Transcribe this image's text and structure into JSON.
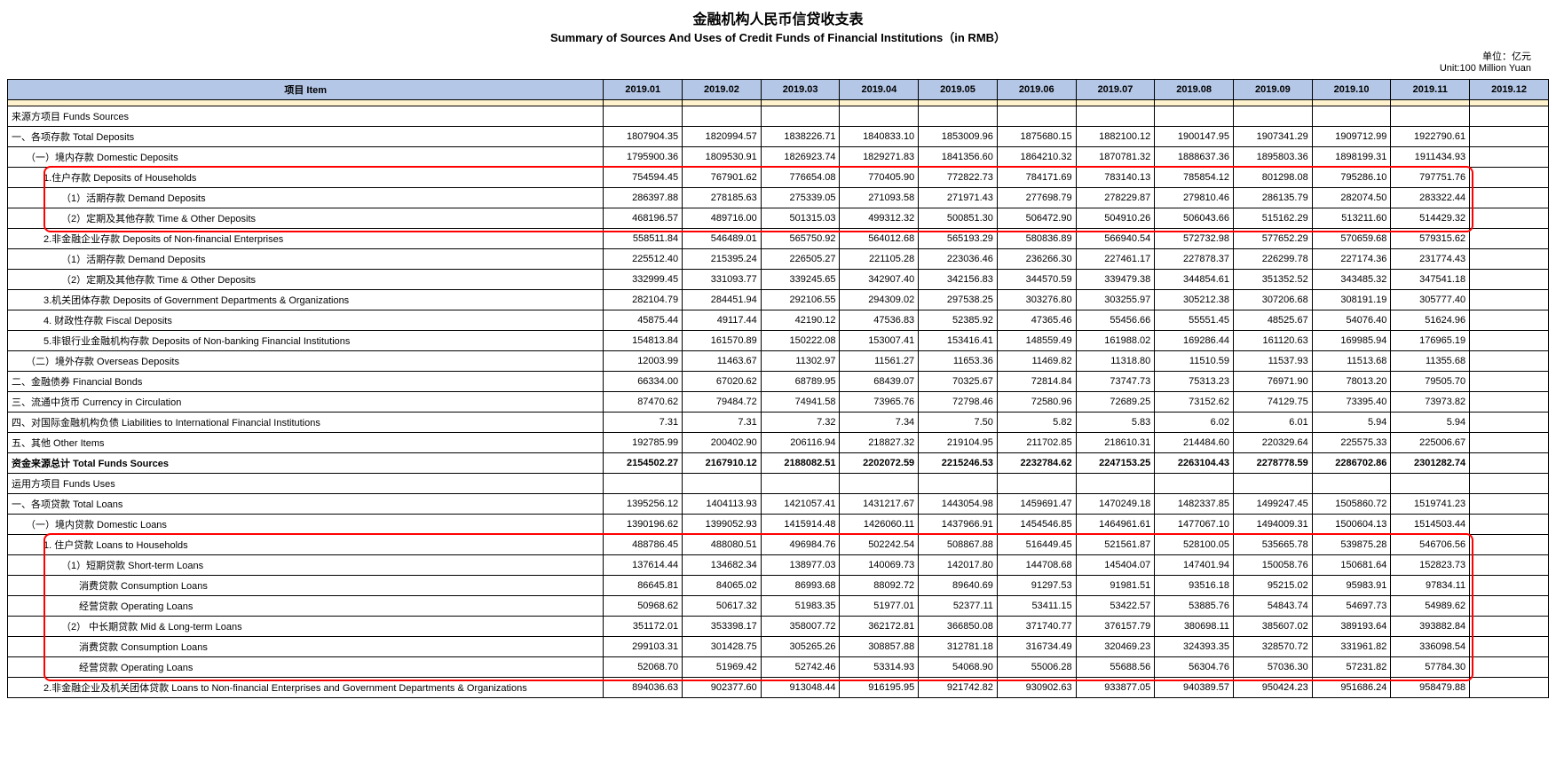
{
  "title_cn": "金融机构人民币信贷收支表",
  "title_en": "Summary of Sources And Uses of Credit Funds of Financial Institutions（in RMB）",
  "unit_cn": "单位：亿元",
  "unit_en": "Unit:100 Million Yuan",
  "header_item": "项目 Item",
  "periods": [
    "2019.01",
    "2019.02",
    "2019.03",
    "2019.04",
    "2019.05",
    "2019.06",
    "2019.07",
    "2019.08",
    "2019.09",
    "2019.10",
    "2019.11",
    "2019.12"
  ],
  "colors": {
    "header_bg": "#b4c7e7",
    "spacer_bg": "#fff2cc",
    "highlight_border": "#ff0000"
  },
  "rows": [
    {
      "label": "来源方项目 Funds Sources",
      "indent": 0,
      "bold": false,
      "values": [
        "",
        "",
        "",
        "",
        "",
        "",
        "",
        "",
        "",
        "",
        "",
        ""
      ]
    },
    {
      "label": "一、各项存款 Total Deposits",
      "indent": 0,
      "bold": false,
      "values": [
        "1807904.35",
        "1820994.57",
        "1838226.71",
        "1840833.10",
        "1853009.96",
        "1875680.15",
        "1882100.12",
        "1900147.95",
        "1907341.29",
        "1909712.99",
        "1922790.61",
        ""
      ]
    },
    {
      "label": "（一）境内存款 Domestic Deposits",
      "indent": 1,
      "bold": false,
      "values": [
        "1795900.36",
        "1809530.91",
        "1826923.74",
        "1829271.83",
        "1841356.60",
        "1864210.32",
        "1870781.32",
        "1888637.36",
        "1895803.36",
        "1898199.31",
        "1911434.93",
        ""
      ]
    },
    {
      "label": "1.住户存款 Deposits of Households",
      "indent": 2,
      "bold": false,
      "values": [
        "754594.45",
        "767901.62",
        "776654.08",
        "770405.90",
        "772822.73",
        "784171.69",
        "783140.13",
        "785854.12",
        "801298.08",
        "795286.10",
        "797751.76",
        ""
      ]
    },
    {
      "label": "（1）活期存款 Demand Deposits",
      "indent": 3,
      "bold": false,
      "values": [
        "286397.88",
        "278185.63",
        "275339.05",
        "271093.58",
        "271971.43",
        "277698.79",
        "278229.87",
        "279810.46",
        "286135.79",
        "282074.50",
        "283322.44",
        ""
      ]
    },
    {
      "label": "（2）定期及其他存款 Time  & Other Deposits",
      "indent": 3,
      "bold": false,
      "values": [
        "468196.57",
        "489716.00",
        "501315.03",
        "499312.32",
        "500851.30",
        "506472.90",
        "504910.26",
        "506043.66",
        "515162.29",
        "513211.60",
        "514429.32",
        ""
      ]
    },
    {
      "label": "2.非金融企业存款 Deposits of Non-financial Enterprises",
      "indent": 2,
      "bold": false,
      "values": [
        "558511.84",
        "546489.01",
        "565750.92",
        "564012.68",
        "565193.29",
        "580836.89",
        "566940.54",
        "572732.98",
        "577652.29",
        "570659.68",
        "579315.62",
        ""
      ]
    },
    {
      "label": "（1）活期存款 Demand  Deposits",
      "indent": 3,
      "bold": false,
      "values": [
        "225512.40",
        "215395.24",
        "226505.27",
        "221105.28",
        "223036.46",
        "236266.30",
        "227461.17",
        "227878.37",
        "226299.78",
        "227174.36",
        "231774.43",
        ""
      ]
    },
    {
      "label": "（2）定期及其他存款 Time  & Other Deposits",
      "indent": 3,
      "bold": false,
      "values": [
        "332999.45",
        "331093.77",
        "339245.65",
        "342907.40",
        "342156.83",
        "344570.59",
        "339479.38",
        "344854.61",
        "351352.52",
        "343485.32",
        "347541.18",
        ""
      ]
    },
    {
      "label": "3.机关团体存款 Deposits of Government Departments & Organizations",
      "indent": 2,
      "bold": false,
      "values": [
        "282104.79",
        "284451.94",
        "292106.55",
        "294309.02",
        "297538.25",
        "303276.80",
        "303255.97",
        "305212.38",
        "307206.68",
        "308191.19",
        "305777.40",
        ""
      ]
    },
    {
      "label": "4. 财政性存款 Fiscal Deposits",
      "indent": 2,
      "bold": false,
      "values": [
        "45875.44",
        "49117.44",
        "42190.12",
        "47536.83",
        "52385.92",
        "47365.46",
        "55456.66",
        "55551.45",
        "48525.67",
        "54076.40",
        "51624.96",
        ""
      ]
    },
    {
      "label": "5.非银行业金融机构存款 Deposits of Non-banking Financial Institutions",
      "indent": 2,
      "bold": false,
      "values": [
        "154813.84",
        "161570.89",
        "150222.08",
        "153007.41",
        "153416.41",
        "148559.49",
        "161988.02",
        "169286.44",
        "161120.63",
        "169985.94",
        "176965.19",
        ""
      ]
    },
    {
      "label": "（二）境外存款 Overseas Deposits",
      "indent": 1,
      "bold": false,
      "values": [
        "12003.99",
        "11463.67",
        "11302.97",
        "11561.27",
        "11653.36",
        "11469.82",
        "11318.80",
        "11510.59",
        "11537.93",
        "11513.68",
        "11355.68",
        ""
      ]
    },
    {
      "label": "二、金融债券 Financial Bonds",
      "indent": 0,
      "bold": false,
      "values": [
        "66334.00",
        "67020.62",
        "68789.95",
        "68439.07",
        "70325.67",
        "72814.84",
        "73747.73",
        "75313.23",
        "76971.90",
        "78013.20",
        "79505.70",
        ""
      ]
    },
    {
      "label": "三、流通中货币 Currency in Circulation",
      "indent": 0,
      "bold": false,
      "values": [
        "87470.62",
        "79484.72",
        "74941.58",
        "73965.76",
        "72798.46",
        "72580.96",
        "72689.25",
        "73152.62",
        "74129.75",
        "73395.40",
        "73973.82",
        ""
      ]
    },
    {
      "label": "四、对国际金融机构负债 Liabilities to International Financial Institutions",
      "indent": 0,
      "bold": false,
      "values": [
        "7.31",
        "7.31",
        "7.32",
        "7.34",
        "7.50",
        "5.82",
        "5.83",
        "6.02",
        "6.01",
        "5.94",
        "5.94",
        ""
      ]
    },
    {
      "label": "五、其他  Other Items",
      "indent": 0,
      "bold": false,
      "values": [
        "192785.99",
        "200402.90",
        "206116.94",
        "218827.32",
        "219104.95",
        "211702.85",
        "218610.31",
        "214484.60",
        "220329.64",
        "225575.33",
        "225006.67",
        ""
      ]
    },
    {
      "label": "资金来源总计 Total Funds Sources",
      "indent": 0,
      "bold": true,
      "values": [
        "2154502.27",
        "2167910.12",
        "2188082.51",
        "2202072.59",
        "2215246.53",
        "2232784.62",
        "2247153.25",
        "2263104.43",
        "2278778.59",
        "2286702.86",
        "2301282.74",
        ""
      ]
    },
    {
      "label": "运用方项目 Funds Uses",
      "indent": 0,
      "bold": false,
      "values": [
        "",
        "",
        "",
        "",
        "",
        "",
        "",
        "",
        "",
        "",
        "",
        ""
      ]
    },
    {
      "label": "一、各项贷款 Total Loans",
      "indent": 0,
      "bold": false,
      "values": [
        "1395256.12",
        "1404113.93",
        "1421057.41",
        "1431217.67",
        "1443054.98",
        "1459691.47",
        "1470249.18",
        "1482337.85",
        "1499247.45",
        "1505860.72",
        "1519741.23",
        ""
      ]
    },
    {
      "label": "（一）境内贷款 Domestic Loans",
      "indent": 1,
      "bold": false,
      "values": [
        "1390196.62",
        "1399052.93",
        "1415914.48",
        "1426060.11",
        "1437966.91",
        "1454546.85",
        "1464961.61",
        "1477067.10",
        "1494009.31",
        "1500604.13",
        "1514503.44",
        ""
      ]
    },
    {
      "label": "1. 住户贷款 Loans to Households",
      "indent": 2,
      "bold": false,
      "values": [
        "488786.45",
        "488080.51",
        "496984.76",
        "502242.54",
        "508867.88",
        "516449.45",
        "521561.87",
        "528100.05",
        "535665.78",
        "539875.28",
        "546706.56",
        ""
      ]
    },
    {
      "label": "（1）短期贷款 Short-term  Loans",
      "indent": 3,
      "bold": false,
      "values": [
        "137614.44",
        "134682.34",
        "138977.03",
        "140069.73",
        "142017.80",
        "144708.68",
        "145404.07",
        "147401.94",
        "150058.76",
        "150681.64",
        "152823.73",
        ""
      ]
    },
    {
      "label": "消费贷款 Consumption Loans",
      "indent": 4,
      "bold": false,
      "values": [
        "86645.81",
        "84065.02",
        "86993.68",
        "88092.72",
        "89640.69",
        "91297.53",
        "91981.51",
        "93516.18",
        "95215.02",
        "95983.91",
        "97834.11",
        ""
      ]
    },
    {
      "label": "经营贷款 Operating Loans",
      "indent": 4,
      "bold": false,
      "values": [
        "50968.62",
        "50617.32",
        "51983.35",
        "51977.01",
        "52377.11",
        "53411.15",
        "53422.57",
        "53885.76",
        "54843.74",
        "54697.73",
        "54989.62",
        ""
      ]
    },
    {
      "label": "（2） 中长期贷款 Mid & Long-term  Loans",
      "indent": 3,
      "bold": false,
      "values": [
        "351172.01",
        "353398.17",
        "358007.72",
        "362172.81",
        "366850.08",
        "371740.77",
        "376157.79",
        "380698.11",
        "385607.02",
        "389193.64",
        "393882.84",
        ""
      ]
    },
    {
      "label": "消费贷款 Consumption Loans",
      "indent": 4,
      "bold": false,
      "values": [
        "299103.31",
        "301428.75",
        "305265.26",
        "308857.88",
        "312781.18",
        "316734.49",
        "320469.23",
        "324393.35",
        "328570.72",
        "331961.82",
        "336098.54",
        ""
      ]
    },
    {
      "label": "经营贷款 Operating Loans",
      "indent": 4,
      "bold": false,
      "values": [
        "52068.70",
        "51969.42",
        "52742.46",
        "53314.93",
        "54068.90",
        "55006.28",
        "55688.56",
        "56304.76",
        "57036.30",
        "57231.82",
        "57784.30",
        ""
      ]
    },
    {
      "label": "2.非金融企业及机关团体贷款 Loans to Non-financial Enterprises and Government Departments & Organizations",
      "indent": 2,
      "bold": false,
      "values": [
        "894036.63",
        "902377.60",
        "913048.44",
        "916195.95",
        "921742.82",
        "930902.63",
        "933877.05",
        "940389.57",
        "950424.23",
        "951686.24",
        "958479.88",
        ""
      ]
    }
  ],
  "highlight_boxes": [
    {
      "top_row": 3,
      "bottom_row": 5
    },
    {
      "top_row": 21,
      "bottom_row": 27
    }
  ]
}
